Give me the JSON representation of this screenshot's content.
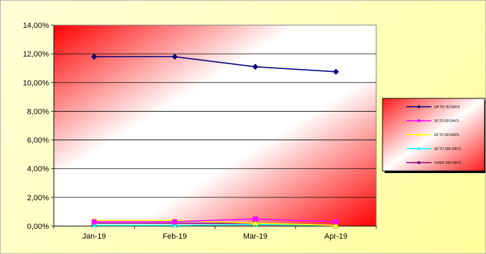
{
  "chart_data": {
    "type": "line",
    "title": "",
    "xlabel": "",
    "ylabel": "",
    "categories": [
      "Jan-19",
      "Feb-19",
      "Mar-19",
      "Apr-19"
    ],
    "ylim": [
      0,
      0.14
    ],
    "y_ticks": [
      "0,00%",
      "2,00%",
      "4,00%",
      "6,00%",
      "8,00%",
      "10,00%",
      "12,00%",
      "14,00%"
    ],
    "grid": true,
    "legend_position": "right",
    "series": [
      {
        "name": "UP TO 30 DAYS",
        "values": [
          0.118,
          0.118,
          0.111,
          0.1075
        ],
        "color": "#000080",
        "marker": "diamond"
      },
      {
        "name": "30 TO 60 DAYS",
        "values": [
          0.003,
          0.003,
          0.005,
          0.003
        ],
        "color": "#ff00ff",
        "marker": "square"
      },
      {
        "name": "60 TO 90 DAYS",
        "values": [
          0.004,
          0.004,
          0.002,
          0.0005
        ],
        "color": "#ffff00",
        "marker": "triangle"
      },
      {
        "name": "90 TO 180 DAYS",
        "values": [
          0.0005,
          0.0005,
          0.001,
          0.0005
        ],
        "color": "#00ffff",
        "marker": "x"
      },
      {
        "name": "OVER 180 DAYS",
        "values": [
          0.002,
          0.002,
          0.002,
          0.0002
        ],
        "color": "#800080",
        "marker": "star"
      }
    ]
  }
}
